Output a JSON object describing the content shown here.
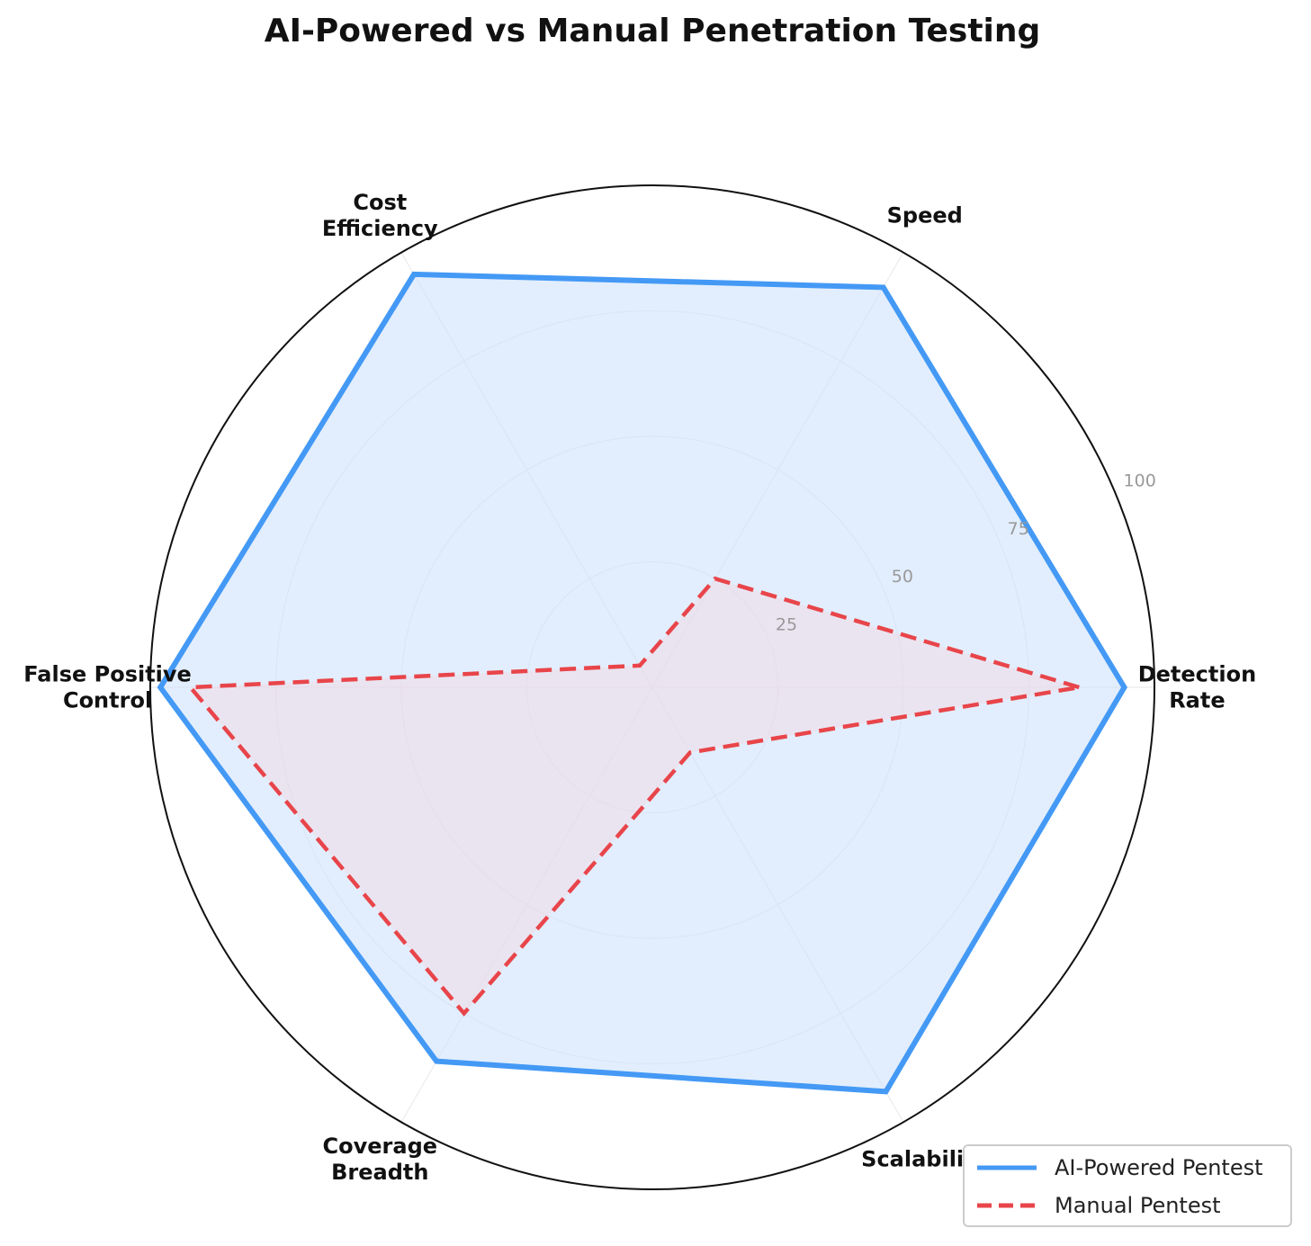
{
  "chart_data": {
    "type": "radar",
    "title": "AI-Powered vs Manual Penetration Testing",
    "categories": [
      "Detection\nRate",
      "Speed",
      "Cost\nEfficiency",
      "False Positive\nControl",
      "Coverage\nBreadth",
      "Scalability"
    ],
    "radial_ticks": [
      25,
      50,
      75,
      100
    ],
    "rlim": [
      0,
      100
    ],
    "grid": true,
    "legend_position": "bottom-right",
    "series": [
      {
        "name": "AI-Powered Pentest",
        "values": [
          94,
          92,
          95,
          98,
          86,
          93
        ],
        "color": "#4499f5",
        "style": "solid",
        "fill": "#cfe3fb"
      },
      {
        "name": "Manual Pentest",
        "values": [
          85,
          25,
          5,
          92,
          75,
          15
        ],
        "color": "#e8454a",
        "style": "dashed",
        "fill": "#f3d6df"
      }
    ]
  }
}
